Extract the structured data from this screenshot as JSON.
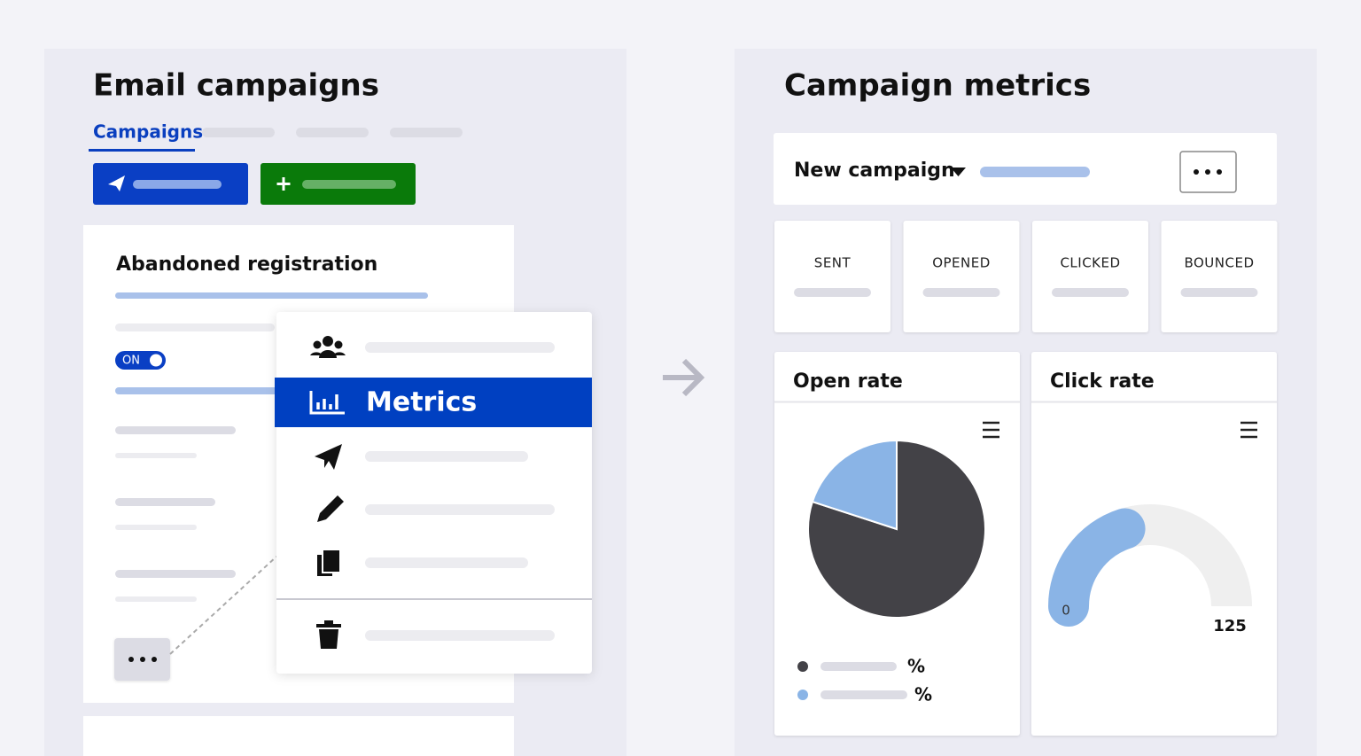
{
  "left_panel": {
    "title": "Email campaigns",
    "tabs": {
      "active": "Campaigns"
    },
    "card": {
      "title": "Abandoned registration",
      "toggle": "ON"
    },
    "context_menu": {
      "highlighted_item": "Metrics"
    }
  },
  "right_panel": {
    "title": "Campaign metrics",
    "campaign_selector": "New campaign",
    "stats": [
      "SENT",
      "OPENED",
      "CLICKED",
      "BOUNCED"
    ],
    "open_rate": {
      "title": "Open rate",
      "type": "pie",
      "values": [
        80,
        20
      ],
      "colors": [
        "#434247",
        "#8ab4e6"
      ],
      "legend_labels": [
        "%",
        "%"
      ]
    },
    "click_rate": {
      "title": "Click rate",
      "type": "gauge",
      "value": 50,
      "min": 0,
      "max": 125,
      "color": "#8ab4e6",
      "track_color": "#efefef"
    }
  }
}
